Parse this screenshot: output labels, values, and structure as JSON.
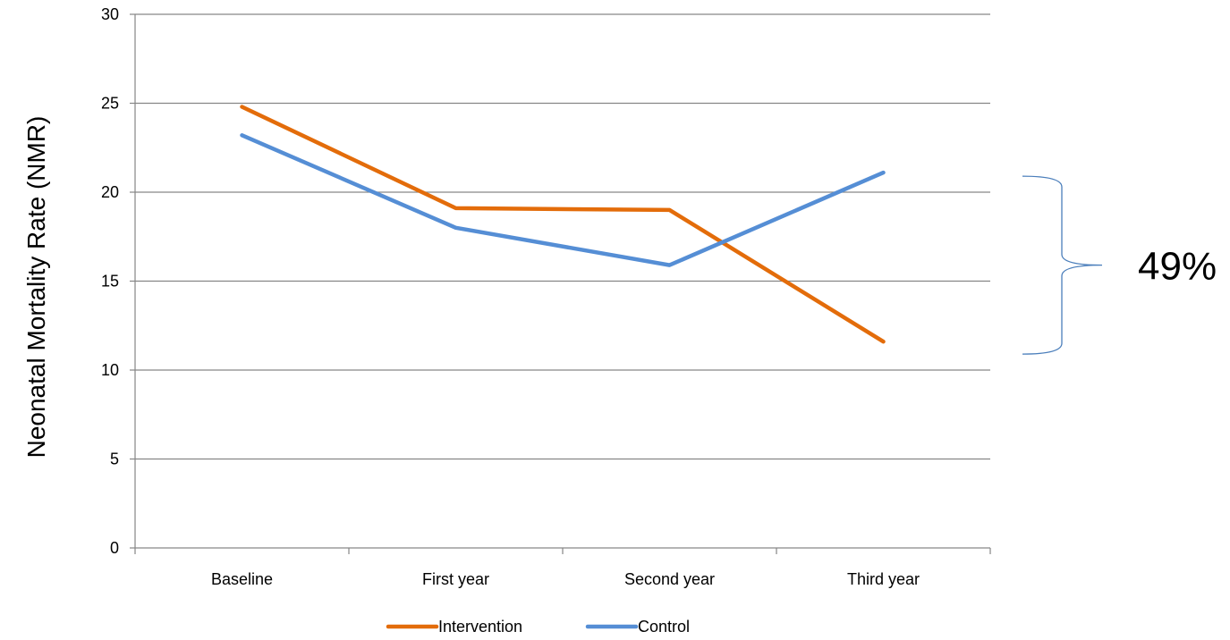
{
  "chart_data": {
    "type": "line",
    "title": "",
    "xlabel": "",
    "ylabel": "Neonatal Mortality Rate (NMR)",
    "categories": [
      "Baseline",
      "First year",
      "Second year",
      "Third year"
    ],
    "ylim": [
      0,
      30
    ],
    "yticks": [
      0,
      5,
      10,
      15,
      20,
      25,
      30
    ],
    "grid": true,
    "legend_position": "bottom",
    "series": [
      {
        "name": "Intervention",
        "color": "#e36c0a",
        "values": [
          24.8,
          19.1,
          19.0,
          11.6
        ]
      },
      {
        "name": "Control",
        "color": "#558ed5",
        "values": [
          23.2,
          18.0,
          15.9,
          21.1
        ]
      }
    ],
    "annotations": [
      {
        "text": "49%",
        "type": "brace",
        "y_range": [
          10.9,
          20.9
        ]
      }
    ]
  }
}
